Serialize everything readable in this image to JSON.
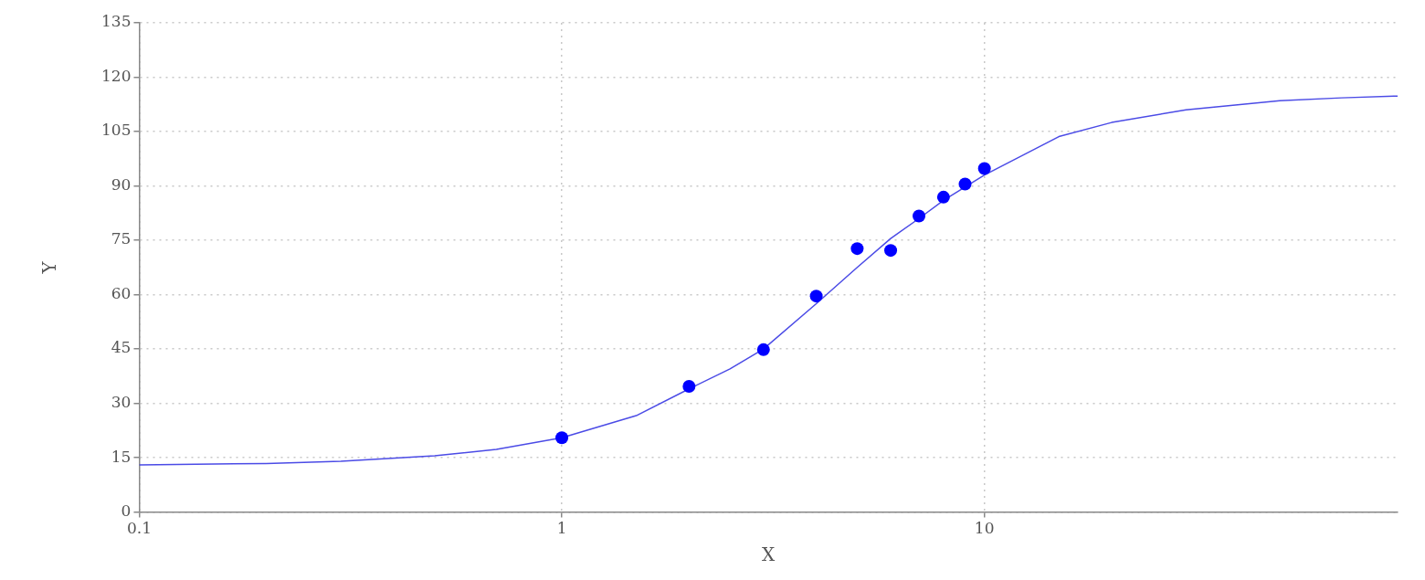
{
  "chart_data": {
    "type": "scatter",
    "xlabel": "X",
    "ylabel": "Y",
    "log": "x",
    "xlim": [
      0.1,
      95
    ],
    "xticks": [
      0.1,
      1,
      10
    ],
    "ylim": [
      0,
      135
    ],
    "yticks": [
      0,
      15,
      30,
      45,
      60,
      75,
      90,
      105,
      120,
      135
    ],
    "grid": true,
    "series": [
      {
        "type": "scatter",
        "color": "#0000ff",
        "marker": "circle",
        "x": [
          1,
          2,
          3,
          4,
          5,
          6,
          7,
          8,
          9,
          10
        ],
        "values": [
          20.5,
          34.7,
          44.8,
          59.6,
          72.7,
          72.2,
          81.7,
          86.9,
          90.5,
          94.8
        ]
      },
      {
        "type": "line",
        "color": "#4b4be6",
        "marker": "none",
        "line_style": "solid",
        "x": [
          0.1,
          0.2,
          0.3,
          0.5,
          0.7,
          1,
          1.5,
          2,
          2.5,
          3,
          4,
          5,
          6,
          7,
          8,
          10,
          15,
          20,
          30,
          50,
          70,
          95
        ],
        "values": [
          13,
          13.4,
          14,
          15.5,
          17.3,
          20.5,
          26.6,
          34,
          39.5,
          45,
          57.5,
          67.5,
          75.5,
          81,
          86,
          93,
          103.6,
          107.5,
          111,
          113.5,
          114.3,
          114.8
        ]
      }
    ]
  }
}
